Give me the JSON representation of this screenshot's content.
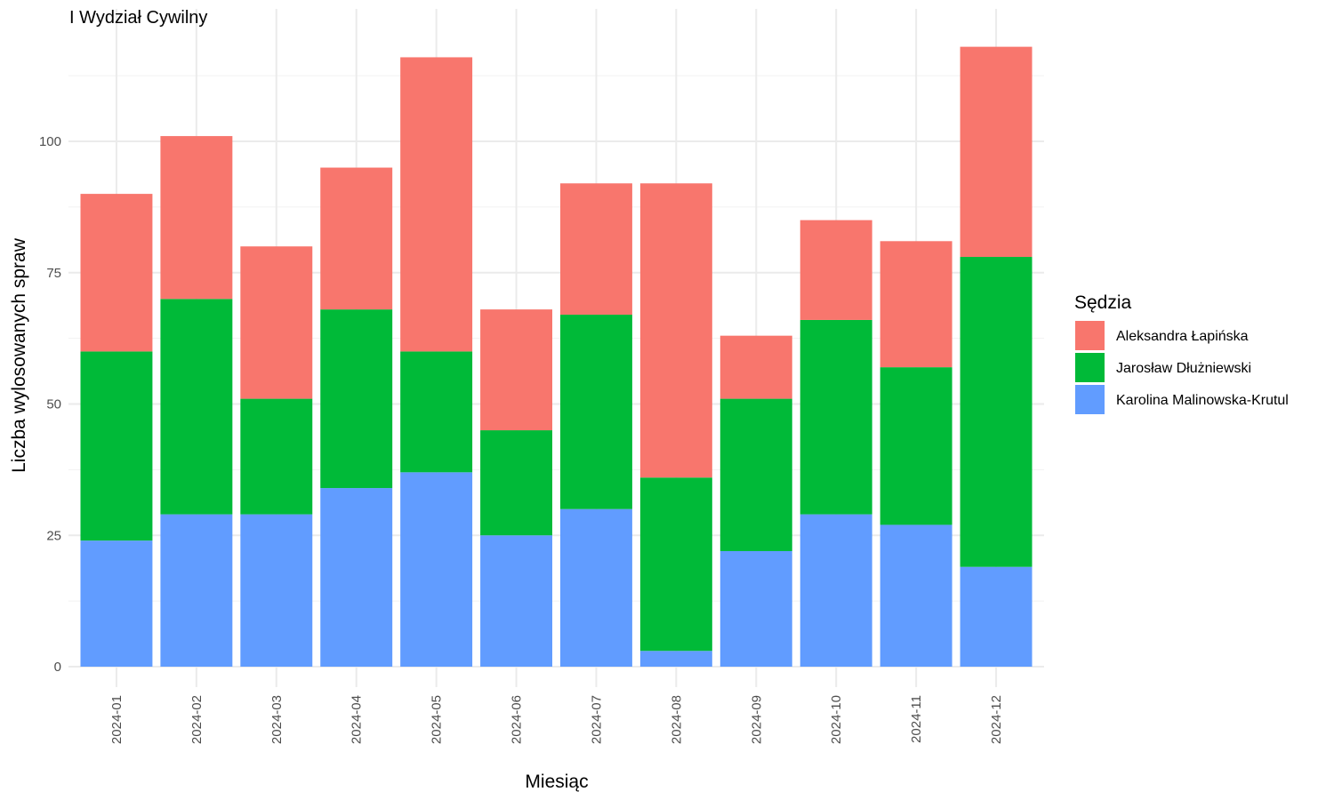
{
  "chart_data": {
    "type": "bar",
    "stacked": true,
    "title": "I Wydział Cywilny",
    "xlabel": "Miesiąc",
    "ylabel": "Liczba wylosowanych spraw",
    "ylim": [
      0,
      120
    ],
    "yticks": [
      0,
      25,
      50,
      75,
      100
    ],
    "grid": true,
    "legend_title": "Sędzia",
    "legend_position": "right",
    "categories": [
      "2024-01",
      "2024-02",
      "2024-03",
      "2024-04",
      "2024-05",
      "2024-06",
      "2024-07",
      "2024-08",
      "2024-09",
      "2024-10",
      "2024-11",
      "2024-12"
    ],
    "series": [
      {
        "name": "Karolina Malinowska-Krutul",
        "color": "#619CFF",
        "values": [
          24,
          29,
          29,
          34,
          37,
          25,
          30,
          3,
          22,
          29,
          27,
          19
        ]
      },
      {
        "name": "Jarosław Dłużniewski",
        "color": "#00BA38",
        "values": [
          36,
          41,
          22,
          34,
          23,
          20,
          37,
          33,
          29,
          37,
          30,
          59
        ]
      },
      {
        "name": "Aleksandra Łapińska",
        "color": "#F8766D",
        "values": [
          30,
          31,
          29,
          27,
          56,
          23,
          25,
          56,
          12,
          19,
          24,
          40
        ]
      }
    ],
    "legend_order": [
      "Aleksandra Łapińska",
      "Jarosław Dłużniewski",
      "Karolina Malinowska-Krutul"
    ]
  }
}
